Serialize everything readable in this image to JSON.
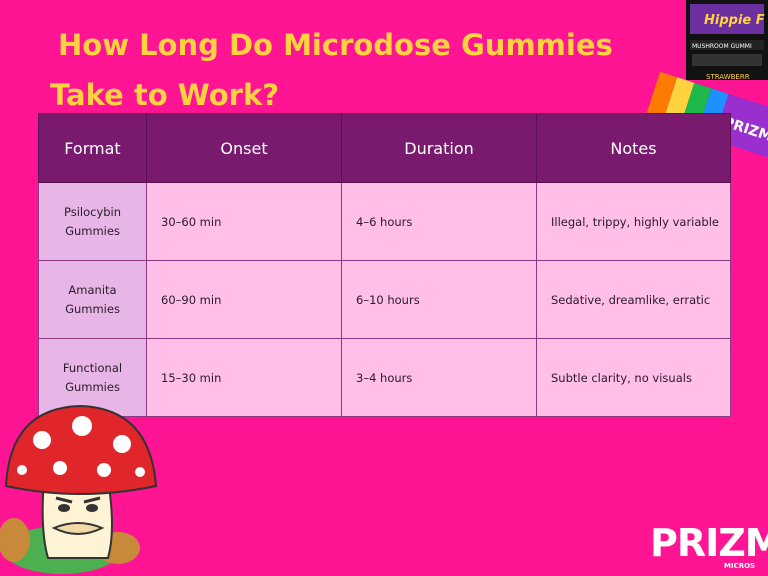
{
  "title": {
    "line1": "How Long Do Microdose Gummies",
    "line2": "Take to Work?"
  },
  "table": {
    "headers": [
      "Format",
      "Onset",
      "Duration",
      "Notes"
    ],
    "rows": [
      {
        "format": "Psilocybin Gummies",
        "onset": "30–60 min",
        "duration": "4–6 hours",
        "notes": "Illegal, trippy, highly variable"
      },
      {
        "format": "Amanita Gummies",
        "onset": "60–90 min",
        "duration": "6–10 hours",
        "notes": "Sedative, dreamlike, erratic"
      },
      {
        "format": "Functional Gummies",
        "onset": "15–30 min",
        "duration": "3–4 hours",
        "notes": "Subtle clarity, no visuals"
      }
    ]
  },
  "brand": {
    "logo": "PRIZM",
    "sub": "MICROS"
  },
  "packaging_text": {
    "pack1_title": "Hippie F",
    "pack1_label": "MUSHROOM GUMMI",
    "pack1_flavor": "STRAWBERR",
    "pack2_logo": "PRIZM"
  },
  "colors": {
    "background": "#ff1493",
    "title": "#ffd23f",
    "header": "#7a1a6e",
    "format_cell": "#e8b6e6",
    "value_cell": "#ffbfe6"
  }
}
